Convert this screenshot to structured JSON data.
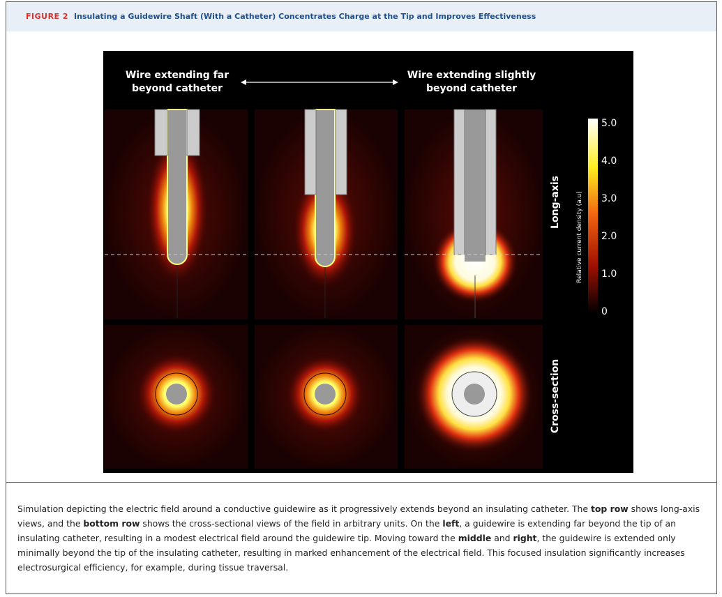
{
  "header": {
    "label": "FIGURE 2",
    "title": "Insulating a Guidewire Shaft (With a Catheter) Concentrates Charge at the Tip and Improves Effectiveness"
  },
  "figure": {
    "column_labels": [
      {
        "lines": [
          "Wire extending far",
          "beyond catheter"
        ]
      },
      {
        "lines": [
          "Wire extending slightly",
          "beyond catheter"
        ]
      }
    ],
    "row_labels": [
      "Long-axis",
      "Cross-section"
    ],
    "colorbar": {
      "title": "Relative current density (a.u)",
      "ticks": [
        "5.0",
        "4.0",
        "3.0",
        "2.0",
        "1.0",
        "0"
      ]
    }
  },
  "caption": [
    "Simulation depicting the electric field around a conductive guidewire as it progressively extends beyond an insulating catheter. The ",
    "top row",
    " shows long-axis views, and the ",
    "bottom row",
    " shows the cross-sectional views of the field in arbitrary units. On the ",
    "left",
    ", a guidewire is extending far beyond the tip of an insulating catheter, resulting in a modest electrical field around the guidewire tip. Moving toward the ",
    "middle",
    " and ",
    "right",
    ", the guidewire is extended only minimally beyond the tip of the insulating catheter, resulting in marked enhancement of the electrical field. This focused insulation significantly increases electrosurgical efficiency, for example, during tissue traversal."
  ]
}
